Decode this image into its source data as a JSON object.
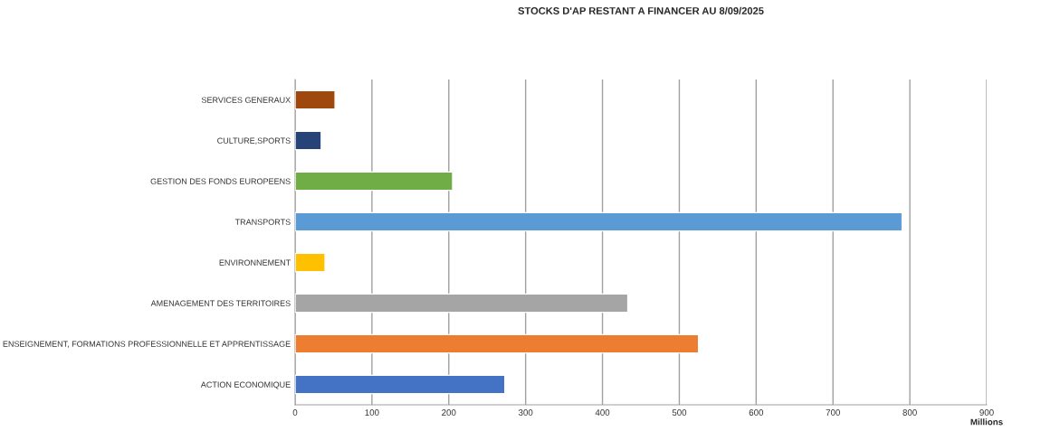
{
  "chart_data": {
    "type": "bar",
    "orientation": "horizontal",
    "title": "STOCKS D'AP RESTANT A FINANCER AU 8/09/2025",
    "xlabel": "Millions",
    "categories": [
      "SERVICES GENERAUX",
      "CULTURE,SPORTS",
      "GESTION DES FONDS EUROPEENS",
      "TRANSPORTS",
      "ENVIRONNEMENT",
      "AMENAGEMENT DES TERRITOIRES",
      "ENSEIGNEMENT, FORMATIONS PROFESSIONNELLE ET APPRENTISSAGE",
      "ACTION ECONOMIQUE"
    ],
    "values": [
      52,
      34,
      205,
      790,
      39,
      433,
      525,
      273
    ],
    "colors": [
      "#9e480e",
      "#264478",
      "#70ad47",
      "#5b9bd5",
      "#ffc000",
      "#a5a5a5",
      "#ed7d31",
      "#4472c4"
    ],
    "xlim": [
      0,
      900
    ],
    "xticks": [
      0,
      100,
      200,
      300,
      400,
      500,
      600,
      700,
      800,
      900
    ],
    "grid": "x"
  }
}
